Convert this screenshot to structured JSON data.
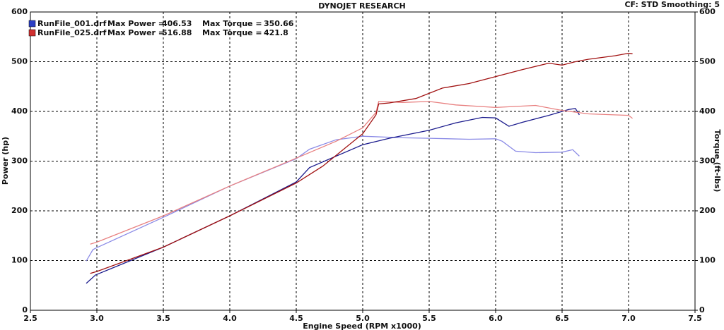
{
  "chart_data": {
    "type": "line",
    "title": "DYNOJET RESEARCH",
    "settings_text": "CF: STD  Smoothing: 5",
    "x_label": "Engine Speed (RPM x1000)",
    "y_label": "Power (hp)",
    "y2_label": "Torque (ft-lbs)",
    "power_label": "Max Power =",
    "torque_label": "Max Torque =",
    "xlim": [
      2.5,
      7.5
    ],
    "xticks": [
      2.5,
      {
        "value": 3,
        "label": "3.0"
      },
      3.5,
      {
        "value": 4,
        "label": "4.0"
      },
      4.5,
      {
        "value": 5,
        "label": "5.0"
      },
      5.5,
      {
        "value": 6,
        "label": "6.0"
      },
      6.5,
      {
        "value": 7,
        "label": "7.0"
      },
      7.5
    ],
    "ylim": [
      0,
      600
    ],
    "yticks": [
      0,
      100,
      200,
      300,
      400,
      500,
      600
    ],
    "y2lim": [
      0,
      600
    ],
    "y2ticks": [
      0,
      100,
      200,
      300,
      400,
      500,
      600
    ],
    "grid": true,
    "runs": [
      {
        "file": "RunFile_001.drf",
        "max_power": 406.53,
        "max_torque": 350.66,
        "color": "#2b3fc4",
        "power": {
          "color": "#1a1a8c",
          "x": [
            2.92,
            2.99,
            3.0,
            3.5,
            4.0,
            4.5,
            4.6,
            5.0,
            5.2,
            5.5,
            5.7,
            5.9,
            6.0,
            6.1,
            6.2,
            6.4,
            6.55,
            6.6,
            6.63
          ],
          "values": [
            54,
            71,
            72,
            127,
            190,
            258,
            287,
            333,
            346,
            362,
            377,
            388,
            387,
            370,
            378,
            392,
            404,
            406,
            393
          ]
        },
        "torque": {
          "color": "#8a8ae6",
          "axis": "y2",
          "x": [
            2.92,
            2.97,
            3.0,
            3.5,
            4.0,
            4.5,
            4.6,
            4.8,
            5.0,
            5.3,
            5.5,
            5.8,
            6.0,
            6.05,
            6.15,
            6.3,
            6.5,
            6.58,
            6.63
          ],
          "values": [
            99,
            122,
            126,
            187,
            250,
            305,
            324,
            343,
            350,
            347,
            346,
            344,
            345,
            340,
            320,
            317,
            318,
            323,
            310
          ]
        }
      },
      {
        "file": "RunFile_025.drf",
        "max_power": 516.88,
        "max_torque": 421.8,
        "color": "#d03030",
        "power": {
          "color": "#a01010",
          "x": [
            2.95,
            3.0,
            3.5,
            4.0,
            4.5,
            4.7,
            5.0,
            5.1,
            5.12,
            5.2,
            5.4,
            5.6,
            5.8,
            6.0,
            6.2,
            6.4,
            6.5,
            6.6,
            6.7,
            6.9,
            7.0,
            7.03
          ],
          "values": [
            74,
            78,
            127,
            190,
            256,
            290,
            355,
            393,
            415,
            417,
            426,
            447,
            456,
            470,
            484,
            497,
            493,
            500,
            505,
            512,
            517,
            516
          ]
        },
        "torque": {
          "color": "#e88080",
          "axis": "y2",
          "x": [
            2.95,
            3.0,
            3.5,
            4.0,
            4.5,
            4.8,
            5.0,
            5.1,
            5.12,
            5.3,
            5.5,
            5.7,
            6.0,
            6.3,
            6.5,
            6.7,
            7.0,
            7.03
          ],
          "values": [
            133,
            137,
            190,
            250,
            306,
            340,
            367,
            398,
            420,
            418,
            420,
            413,
            408,
            412,
            402,
            395,
            392,
            386
          ]
        }
      }
    ]
  }
}
